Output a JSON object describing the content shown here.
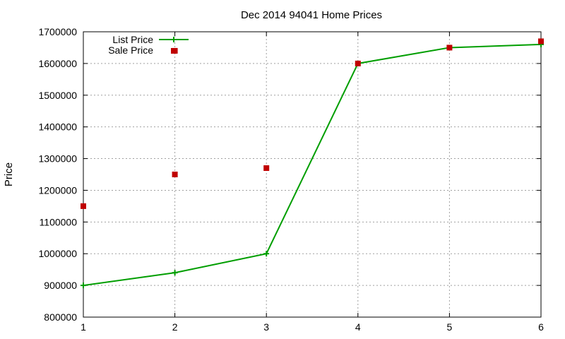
{
  "chart_data": {
    "type": "line",
    "title": "Dec 2014 94041 Home Prices",
    "xlabel": "",
    "ylabel": "Price",
    "x": [
      1,
      2,
      3,
      4,
      5,
      6
    ],
    "xlim": [
      1,
      6
    ],
    "ylim": [
      800000,
      1700000
    ],
    "yticks": [
      800000,
      900000,
      1000000,
      1100000,
      1200000,
      1300000,
      1400000,
      1500000,
      1600000,
      1700000
    ],
    "xticks": [
      1,
      2,
      3,
      4,
      5,
      6
    ],
    "grid": true,
    "legend": "top-left",
    "series": [
      {
        "name": "List Price",
        "style": "line-with-plus-markers",
        "color": "#009e00",
        "values": [
          900000,
          940000,
          1000000,
          1600000,
          1650000,
          1660000
        ]
      },
      {
        "name": "Sale Price",
        "style": "square-markers",
        "color": "#c00000",
        "values": [
          1150000,
          1250000,
          1270000,
          1600000,
          1650000,
          1670000
        ]
      }
    ]
  },
  "second_marker_x2": 1640000
}
